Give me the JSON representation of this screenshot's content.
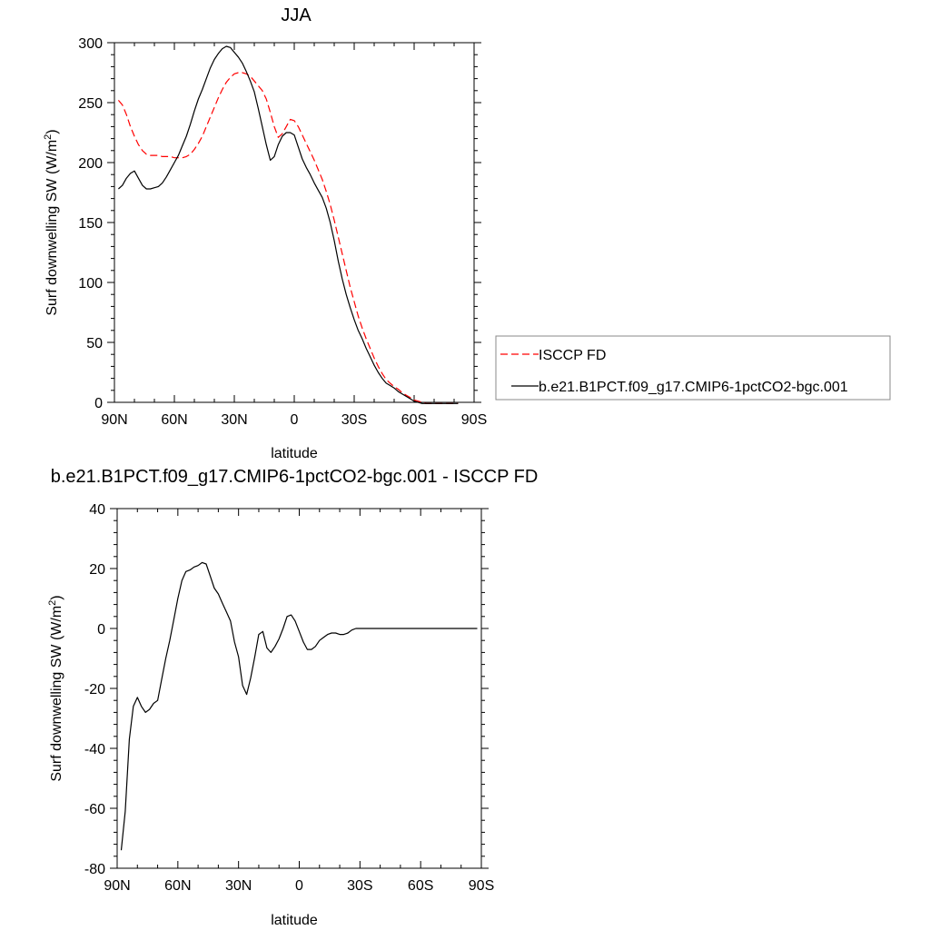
{
  "chart_data": [
    {
      "type": "line",
      "title": "JJA",
      "xlabel": "latitude",
      "ylabel_main": "Surf downwelling SW (W/m",
      "ylabel_sup": "2",
      "ylabel_close": ")",
      "xlim": [
        90,
        -90
      ],
      "ylim": [
        0,
        300
      ],
      "xticks": [
        90,
        60,
        30,
        0,
        -30,
        -60,
        -90
      ],
      "xtick_labels": [
        "90N",
        "60N",
        "30N",
        "0",
        "30S",
        "60S",
        "90S"
      ],
      "yticks": [
        0,
        50,
        100,
        150,
        200,
        250,
        300
      ],
      "ytick_labels": [
        "0",
        "50",
        "100",
        "150",
        "200",
        "250",
        "300"
      ],
      "legend_position": "right",
      "series": [
        {
          "name": "ISCCP FD",
          "color": "#ff0000",
          "dash": "dashed",
          "x": [
            88,
            86,
            84,
            82,
            80,
            78,
            76,
            74,
            72,
            70,
            68,
            66,
            64,
            62,
            60,
            58,
            56,
            54,
            52,
            50,
            48,
            46,
            44,
            42,
            40,
            38,
            36,
            34,
            32,
            30,
            28,
            26,
            24,
            22,
            20,
            18,
            16,
            14,
            12,
            10,
            8,
            6,
            4,
            2,
            0,
            -2,
            -4,
            -6,
            -8,
            -10,
            -12,
            -14,
            -16,
            -18,
            -20,
            -22,
            -24,
            -26,
            -28,
            -30,
            -32,
            -34,
            -36,
            -38,
            -40,
            -42,
            -44,
            -46,
            -48,
            -50,
            -52,
            -54,
            -56,
            -58,
            -60,
            -62,
            -64,
            -66,
            -68,
            -70,
            -72,
            -74,
            -76,
            -78,
            -80,
            -82
          ],
          "y": [
            252,
            248,
            240,
            230,
            222,
            215,
            210,
            207,
            206,
            206,
            206,
            205,
            205,
            205,
            204,
            204,
            204,
            205,
            207,
            211,
            216,
            222,
            230,
            238,
            246,
            254,
            261,
            267,
            271,
            274,
            275,
            275,
            274,
            272,
            268,
            264,
            260,
            253,
            242,
            230,
            221,
            224,
            230,
            236,
            235,
            230,
            223,
            216,
            209,
            202,
            194,
            186,
            176,
            165,
            152,
            138,
            124,
            110,
            96,
            84,
            72,
            62,
            53,
            45,
            37,
            30,
            24,
            19,
            16,
            13,
            11,
            8,
            6,
            4,
            2,
            1,
            0,
            -1,
            -1,
            -1,
            -1,
            -1,
            -1,
            -1,
            -1,
            -1
          ]
        },
        {
          "name": "b.e21.B1PCT.f09_g17.CMIP6-1pctCO2-bgc.001",
          "color": "#000000",
          "dash": "solid",
          "x": [
            88,
            86,
            84,
            82,
            80,
            78,
            76,
            74,
            72,
            70,
            68,
            66,
            64,
            62,
            60,
            58,
            56,
            54,
            52,
            50,
            48,
            46,
            44,
            42,
            40,
            38,
            36,
            34,
            32,
            30,
            28,
            26,
            24,
            22,
            20,
            18,
            16,
            14,
            12,
            10,
            8,
            6,
            4,
            2,
            0,
            -2,
            -4,
            -6,
            -8,
            -10,
            -12,
            -14,
            -16,
            -18,
            -20,
            -22,
            -24,
            -26,
            -28,
            -30,
            -32,
            -34,
            -36,
            -38,
            -40,
            -42,
            -44,
            -46,
            -48,
            -50,
            -52,
            -54,
            -56,
            -58,
            -60,
            -62,
            -64,
            -66,
            -68,
            -70,
            -72,
            -74,
            -76,
            -78,
            -80,
            -82
          ],
          "y": [
            178,
            181,
            187,
            191,
            193,
            187,
            181,
            178,
            178,
            179,
            180,
            183,
            188,
            194,
            200,
            206,
            214,
            222,
            232,
            243,
            253,
            261,
            270,
            279,
            286,
            291,
            295,
            297,
            296,
            292,
            288,
            283,
            276,
            268,
            259,
            245,
            230,
            215,
            202,
            205,
            215,
            222,
            225,
            225,
            223,
            213,
            203,
            196,
            190,
            183,
            177,
            171,
            162,
            150,
            135,
            118,
            103,
            90,
            79,
            69,
            60,
            53,
            45,
            38,
            31,
            25,
            20,
            16,
            14,
            12,
            9,
            7,
            5,
            3,
            1,
            0,
            -1,
            -1,
            -1,
            -1,
            -1,
            -1,
            -1,
            -1,
            -1,
            -1
          ]
        }
      ]
    },
    {
      "type": "line",
      "title": "b.e21.B1PCT.f09_g17.CMIP6-1pctCO2-bgc.001 - ISCCP FD",
      "xlabel": "latitude",
      "ylabel_main": "Surf downwelling SW (W/m",
      "ylabel_sup": "2",
      "ylabel_close": ")",
      "xlim": [
        90,
        -90
      ],
      "ylim": [
        -80,
        40
      ],
      "xticks": [
        90,
        60,
        30,
        0,
        -30,
        -60,
        -90
      ],
      "xtick_labels": [
        "90N",
        "60N",
        "30N",
        "0",
        "30S",
        "60S",
        "90S"
      ],
      "yticks": [
        -80,
        -60,
        -40,
        -20,
        0,
        20,
        40
      ],
      "ytick_labels": [
        "-80",
        "-60",
        "-40",
        "-20",
        "0",
        "20",
        "40"
      ],
      "series": [
        {
          "color": "#000000",
          "dash": "solid",
          "x": [
            88,
            86,
            84,
            82,
            80,
            78,
            76,
            74,
            72,
            70,
            68,
            66,
            64,
            62,
            60,
            58,
            56,
            54,
            52,
            50,
            48,
            46,
            44,
            42,
            40,
            38,
            36,
            34,
            32,
            30,
            28,
            26,
            24,
            22,
            20,
            18,
            16,
            14,
            12,
            10,
            8,
            6,
            4,
            2,
            0,
            -2,
            -4,
            -6,
            -8,
            -10,
            -12,
            -14,
            -16,
            -18,
            -20,
            -22,
            -24,
            -26,
            -28,
            -30,
            -32,
            -34,
            -36,
            -38,
            -40,
            -42,
            -44,
            -46,
            -48,
            -50,
            -52,
            -54,
            -56,
            -58,
            -60,
            -62,
            -64,
            -66,
            -68,
            -70,
            -72,
            -74,
            -76,
            -78,
            -80,
            -82,
            -84,
            -86,
            -88
          ],
          "y": [
            -74,
            -61,
            -37,
            -26,
            -23,
            -26,
            -28,
            -27,
            -25,
            -24,
            -17,
            -10,
            -4,
            3,
            10,
            16,
            19,
            19.5,
            20.5,
            21,
            22,
            21.5,
            17.5,
            13.5,
            11.5,
            8.5,
            5.5,
            2.5,
            -4.5,
            -9.5,
            -19,
            -22,
            -16.5,
            -9.5,
            -2,
            -1,
            -6.5,
            -8,
            -6,
            -3.5,
            0,
            4,
            4.5,
            2.5,
            -1,
            -4.5,
            -7,
            -7,
            -6,
            -4,
            -3,
            -2,
            -1.5,
            -1.5,
            -2,
            -2,
            -1.5,
            -0.5,
            0,
            0,
            0,
            0,
            0,
            0,
            0,
            0,
            0,
            0,
            0,
            0,
            0,
            0,
            0,
            0,
            0,
            0,
            0,
            0,
            0,
            0,
            0,
            0,
            0,
            0,
            0,
            0,
            0,
            0,
            0
          ]
        }
      ]
    }
  ]
}
